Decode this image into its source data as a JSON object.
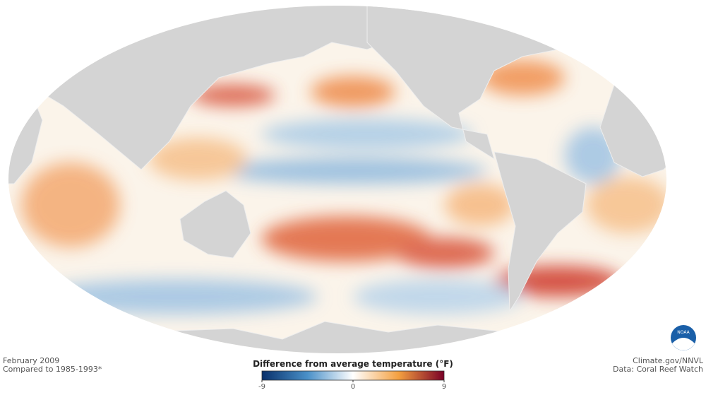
{
  "caption": {
    "date": "February 2009",
    "baseline": "Compared to 1985-1993*"
  },
  "credits": {
    "source": "Climate.gov/NNVL",
    "data": "Data: Coral Reef Watch"
  },
  "logo": "NOAA",
  "legend": {
    "title": "Difference from average temperature (°F)",
    "range": [
      -9,
      9
    ],
    "ticks": [
      -9,
      0,
      9
    ]
  }
}
